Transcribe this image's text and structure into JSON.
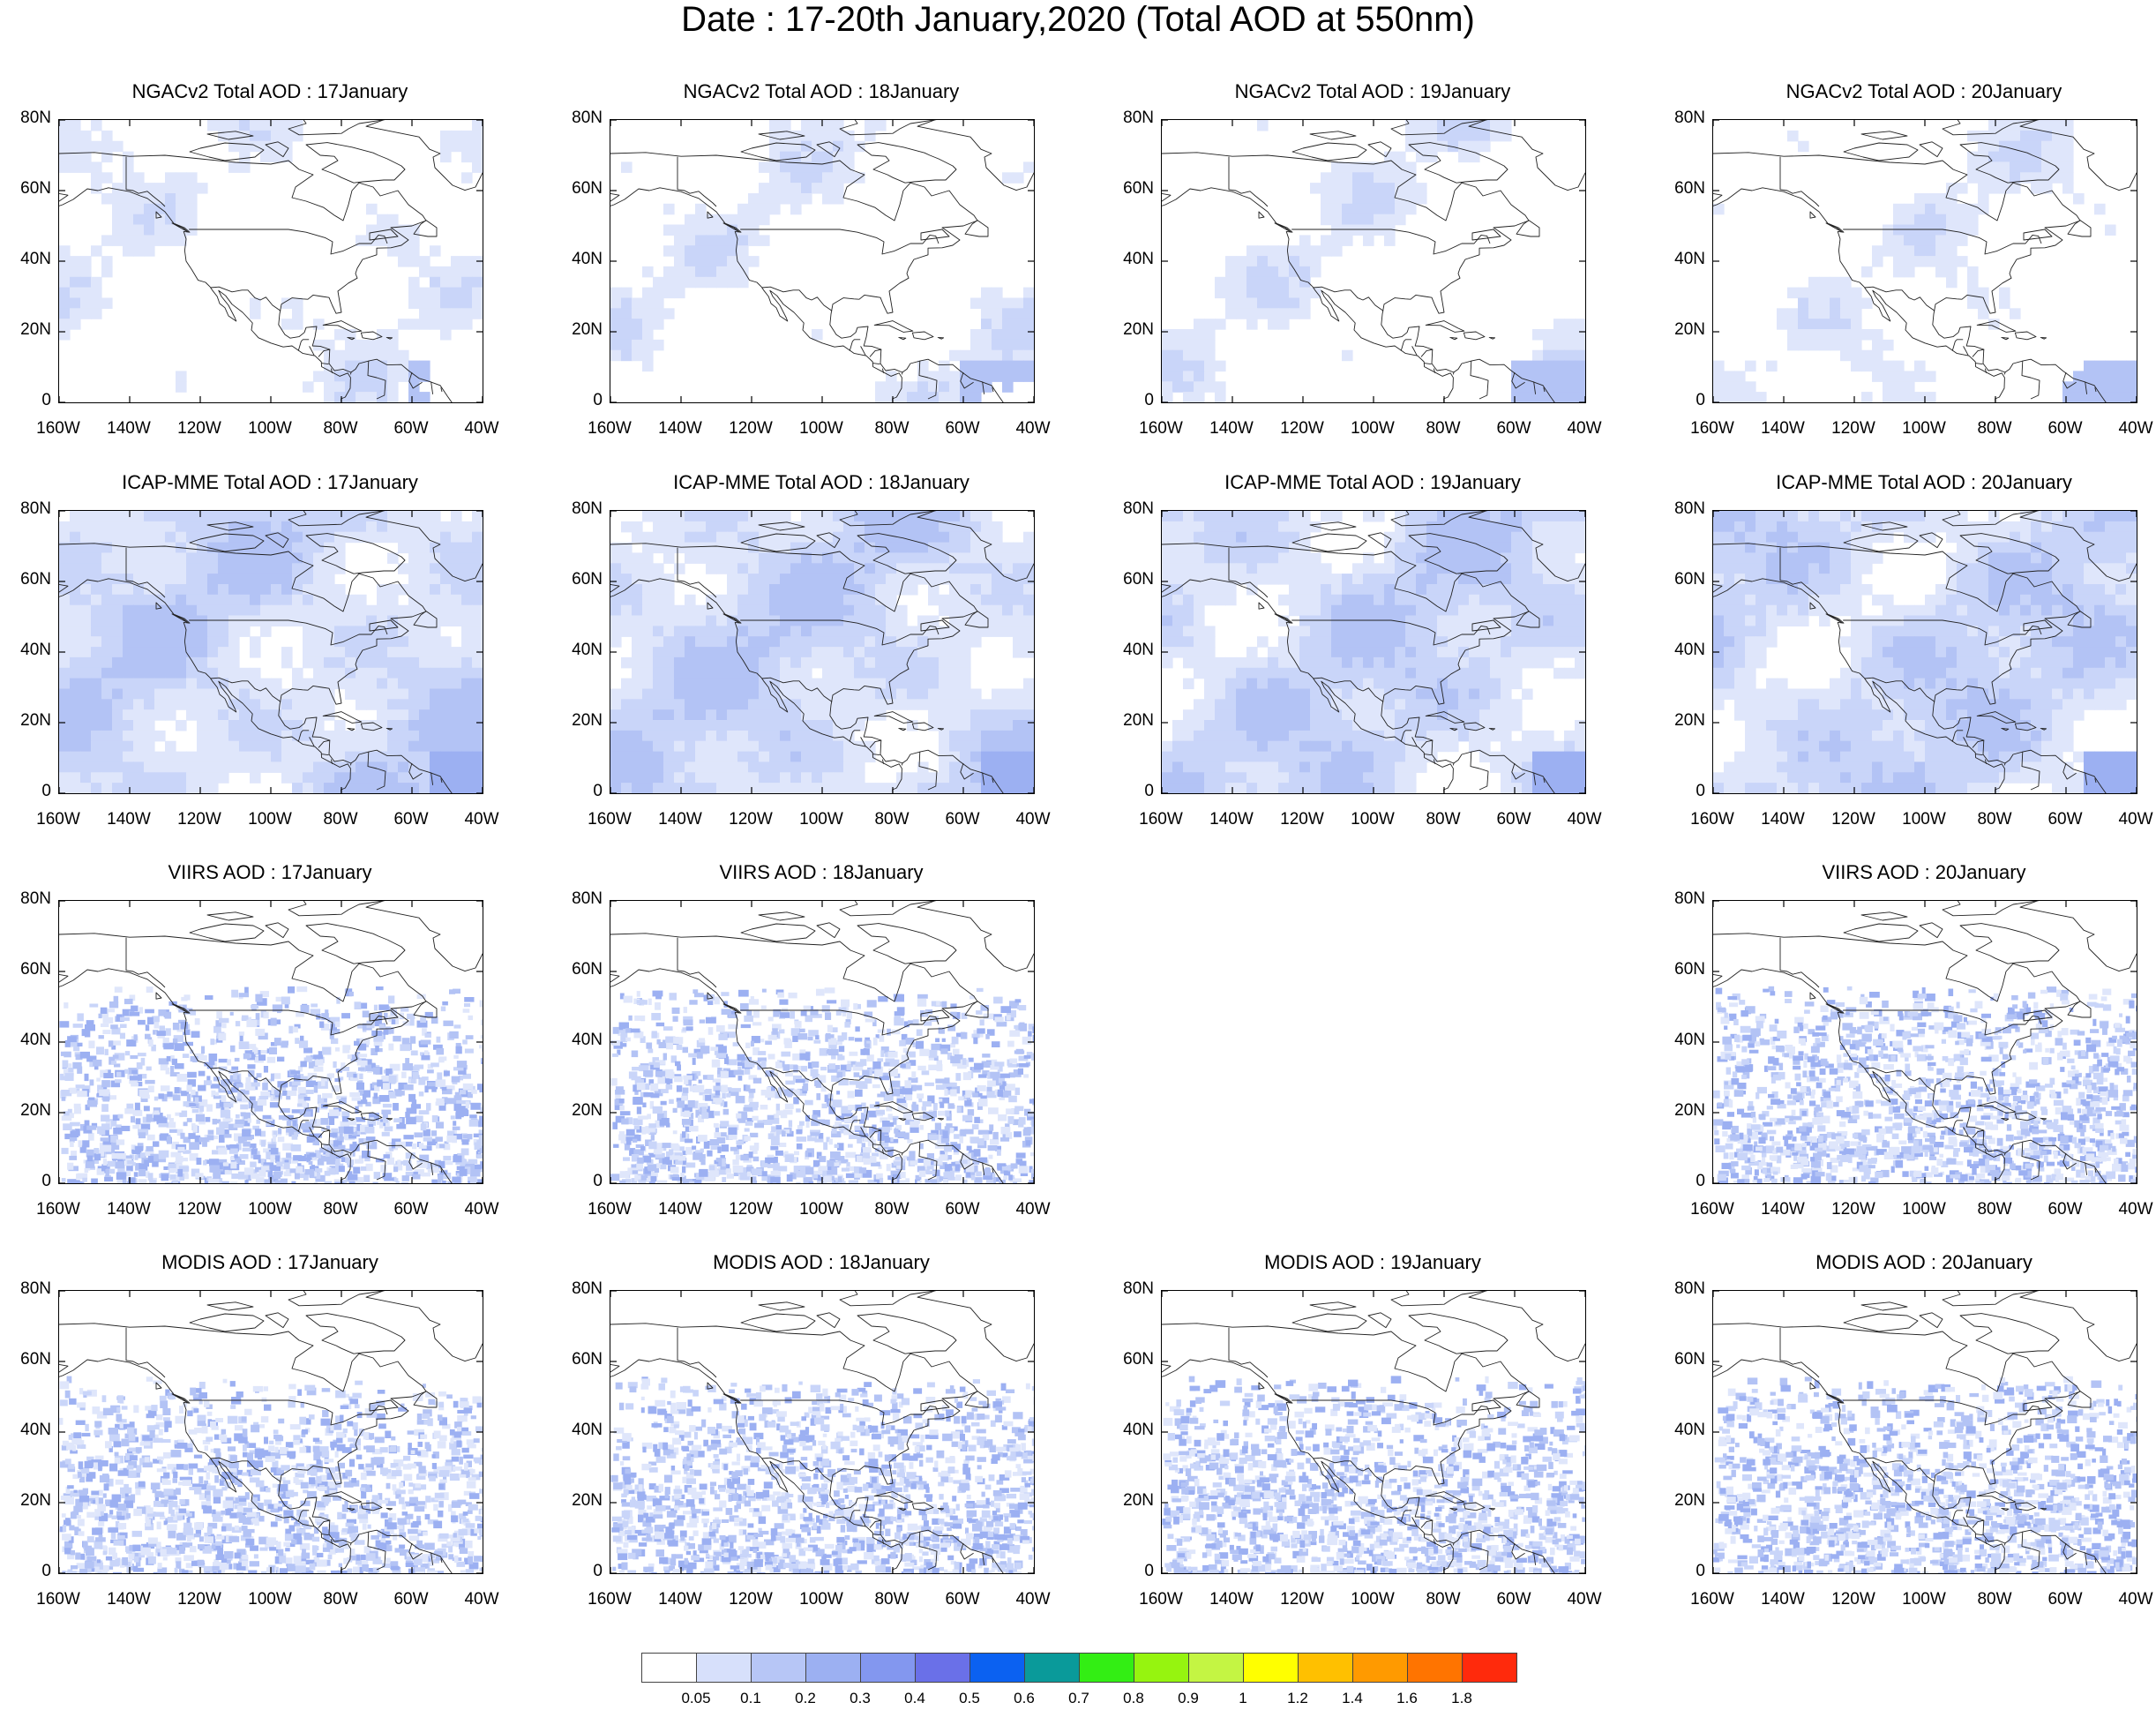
{
  "title": "Date : 17-20th January,2020 (Total AOD at 550nm)",
  "lat_labels": [
    "80N",
    "60N",
    "40N",
    "20N",
    "0"
  ],
  "lon_labels": [
    "160W",
    "140W",
    "120W",
    "100W",
    "80W",
    "60W",
    "40W"
  ],
  "map_extent": {
    "lon_min": -160,
    "lon_max": -40,
    "lat_min": 0,
    "lat_max": 80
  },
  "rows": [
    {
      "product": "NGACv2",
      "panels": [
        {
          "title": "NGACv2 Total AOD : 17January",
          "available": true,
          "style": "model-low"
        },
        {
          "title": "NGACv2 Total AOD : 18January",
          "available": true,
          "style": "model-low"
        },
        {
          "title": "NGACv2 Total AOD : 19January",
          "available": true,
          "style": "model-low"
        },
        {
          "title": "NGACv2 Total AOD : 20January",
          "available": true,
          "style": "model-low"
        }
      ]
    },
    {
      "product": "ICAP-MME",
      "panels": [
        {
          "title": "ICAP-MME Total AOD : 17January",
          "available": true,
          "style": "model-high"
        },
        {
          "title": "ICAP-MME Total AOD : 18January",
          "available": true,
          "style": "model-high"
        },
        {
          "title": "ICAP-MME Total AOD : 19January",
          "available": true,
          "style": "model-high"
        },
        {
          "title": "ICAP-MME Total AOD : 20January",
          "available": true,
          "style": "model-high"
        }
      ]
    },
    {
      "product": "VIIRS",
      "panels": [
        {
          "title": "VIIRS AOD : 17January",
          "available": true,
          "style": "satellite"
        },
        {
          "title": "VIIRS AOD : 18January",
          "available": true,
          "style": "satellite"
        },
        {
          "title": "",
          "available": false,
          "style": "none"
        },
        {
          "title": "VIIRS AOD : 20January",
          "available": true,
          "style": "satellite"
        }
      ]
    },
    {
      "product": "MODIS",
      "panels": [
        {
          "title": "MODIS AOD : 17January",
          "available": true,
          "style": "satellite"
        },
        {
          "title": "MODIS AOD : 18January",
          "available": true,
          "style": "satellite"
        },
        {
          "title": "MODIS AOD : 19January",
          "available": true,
          "style": "satellite"
        },
        {
          "title": "MODIS AOD : 20January",
          "available": true,
          "style": "satellite"
        }
      ]
    }
  ],
  "colorbar": {
    "labels": [
      "0.05",
      "0.1",
      "0.2",
      "0.3",
      "0.4",
      "0.5",
      "0.6",
      "0.7",
      "0.8",
      "0.9",
      "1",
      "1.2",
      "1.4",
      "1.6",
      "1.8"
    ],
    "colors": [
      "#ffffff",
      "#d7e0fb",
      "#b7c6f6",
      "#9cb0f2",
      "#8397ef",
      "#6a70e8",
      "#0b61f1",
      "#0a9a9a",
      "#33ee14",
      "#96f40f",
      "#c4f543",
      "#ffff00",
      "#ffc000",
      "#ff9a00",
      "#ff7400",
      "#ff2a0c"
    ]
  }
}
